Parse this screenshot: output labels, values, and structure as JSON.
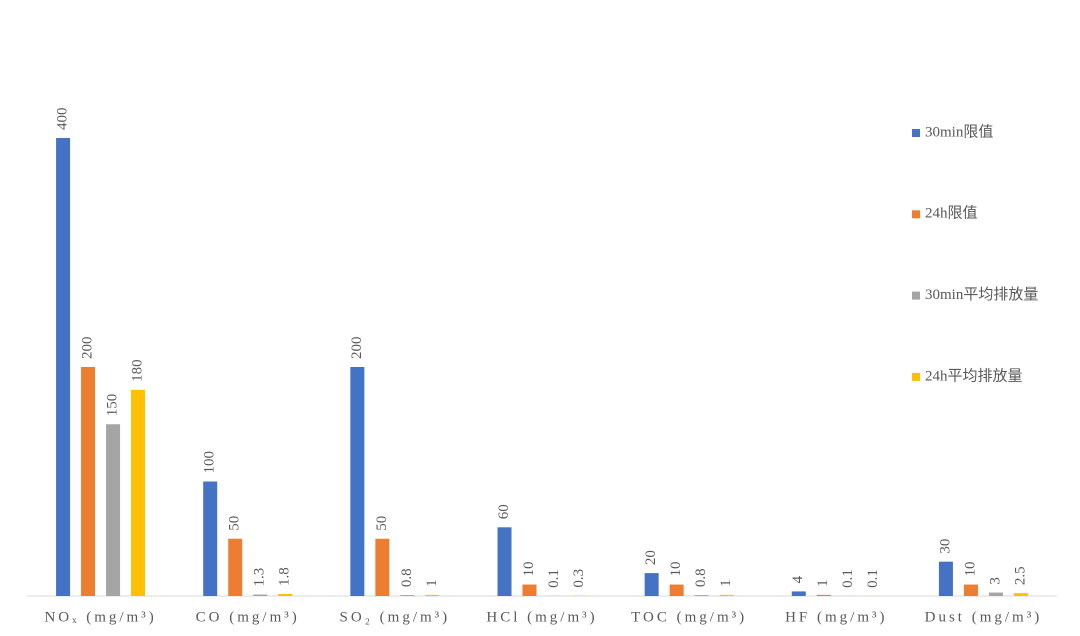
{
  "chart_data": {
    "type": "bar",
    "categories": [
      "NOₓ (mg/m³)",
      "CO (mg/m³)",
      "SO₂ (mg/m³)",
      "HCl (mg/m³)",
      "TOC (mg/m³)",
      "HF (mg/m³)",
      "Dust (mg/m³)"
    ],
    "series": [
      {
        "name": "30min限值",
        "color": "#4472c4",
        "values": [
          400,
          100,
          200,
          60,
          20,
          4,
          30
        ]
      },
      {
        "name": "24h限值",
        "color": "#ed7d31",
        "values": [
          200,
          50,
          50,
          10,
          10,
          1,
          10
        ]
      },
      {
        "name": "30min平均排放量",
        "color": "#a5a5a5",
        "values": [
          150,
          1.3,
          0.8,
          0.1,
          0.8,
          0.1,
          3
        ]
      },
      {
        "name": "24h平均排放量",
        "color": "#ffc000",
        "values": [
          180,
          1.8,
          1,
          0.3,
          1,
          0.1,
          2.5
        ]
      }
    ],
    "ylim": [
      0,
      400
    ],
    "legend": "right"
  }
}
